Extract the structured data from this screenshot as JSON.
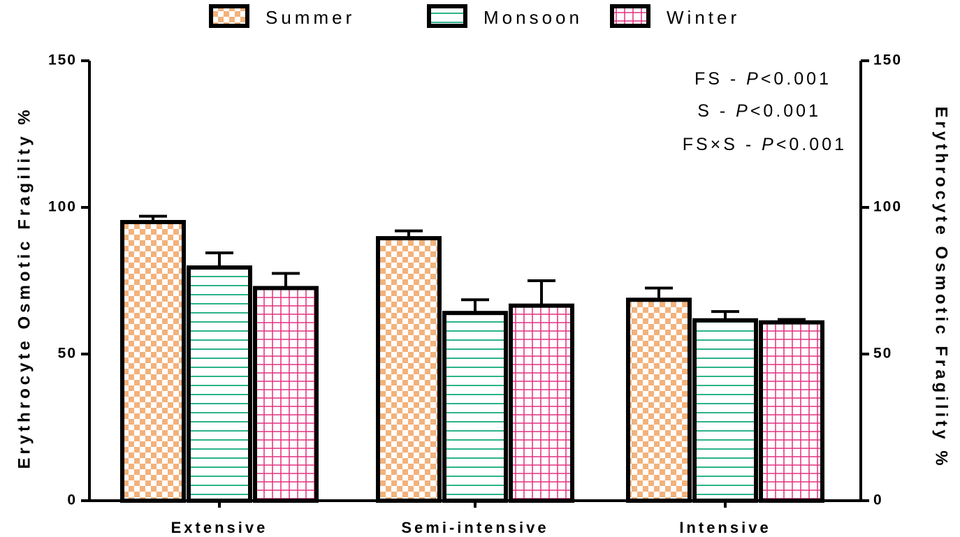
{
  "chart_data": {
    "type": "bar",
    "categories": [
      "Extensive",
      "Semi-intensive",
      "Intensive"
    ],
    "series": [
      {
        "name": "Summer",
        "color": "#f2b27c",
        "pattern": "checker",
        "values": [
          95,
          89.5,
          68.5
        ],
        "errors": [
          2,
          2.5,
          4
        ]
      },
      {
        "name": "Monsoon",
        "color": "#2bb38a",
        "pattern": "hlines",
        "values": [
          79.5,
          64,
          61.5
        ],
        "errors": [
          5,
          4.5,
          3
        ]
      },
      {
        "name": "Winter",
        "color": "#e2317f",
        "pattern": "grid",
        "values": [
          72.5,
          66.5,
          60.8
        ],
        "errors": [
          5,
          8.5,
          1
        ]
      }
    ],
    "ylabel": "Erythrocyte Osmotic Fragility %",
    "y2label": "Erythrocyte Osmotic Fragility %",
    "ylim": [
      0,
      150
    ],
    "yticks": [
      0,
      50,
      100,
      150
    ],
    "y2lim": [
      0,
      150
    ],
    "y2ticks": [
      0,
      50,
      100,
      150
    ],
    "annotations": [
      [
        {
          "text": "FS - "
        },
        {
          "text": "P",
          "italic": true
        },
        {
          "text": "<0.001"
        }
      ],
      [
        {
          "text": "S - "
        },
        {
          "text": "P",
          "italic": true
        },
        {
          "text": "<0.001"
        }
      ],
      [
        {
          "text": "FS×S - "
        },
        {
          "text": "P",
          "italic": true
        },
        {
          "text": "<0.001"
        }
      ]
    ],
    "legend": "top",
    "grid": false
  }
}
